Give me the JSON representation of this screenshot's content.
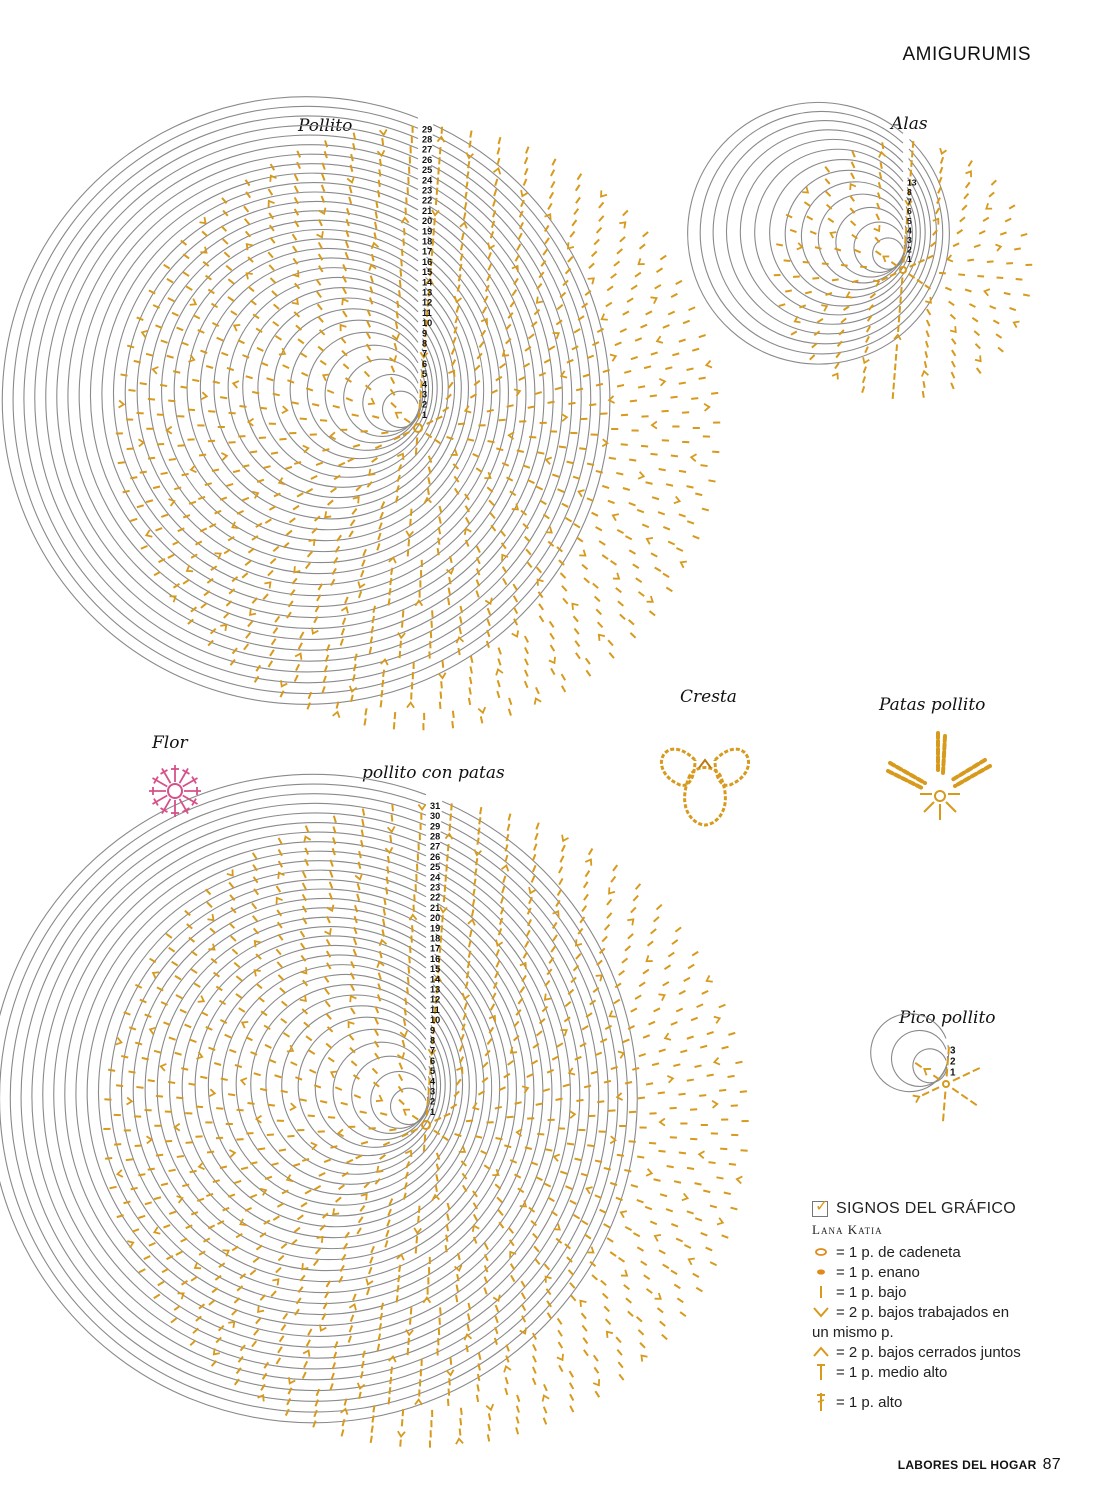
{
  "header": {
    "section": "AMIGURUMIS"
  },
  "charts": {
    "pollito": {
      "title": "Pollito",
      "rounds": 29
    },
    "alas": {
      "title": "Alas",
      "rounds": 13,
      "labels": [
        "13",
        "8",
        "7",
        "6",
        "5",
        "4",
        "3",
        "2",
        "1"
      ]
    },
    "cresta": {
      "title": "Cresta"
    },
    "patas": {
      "title": "Patas pollito"
    },
    "flor": {
      "title": "Flor"
    },
    "pollito_patas": {
      "title": "pollito con patas",
      "rounds": 31
    },
    "pico": {
      "title": "Pico pollito",
      "rounds": 3
    }
  },
  "legend": {
    "heading": "SIGNOS DEL GRÁFICO",
    "yarn": "Lana Katia",
    "items": [
      {
        "symbol": "chain-icon",
        "label": "= 1 p. de cadeneta"
      },
      {
        "symbol": "slip-stitch-icon",
        "label": "= 1 p. enano"
      },
      {
        "symbol": "single-crochet-icon",
        "label": "= 1 p. bajo"
      },
      {
        "symbol": "increase-icon",
        "label": "= 2 p. bajos trabajados en",
        "label2": "un mismo p."
      },
      {
        "symbol": "decrease-icon",
        "label": "= 2 p. bajos cerrados juntos"
      },
      {
        "symbol": "half-double-icon",
        "label": "= 1 p. medio alto"
      },
      {
        "symbol": "double-crochet-icon",
        "label": "= 1 p. alto"
      }
    ]
  },
  "footer": {
    "magazine": "LABORES DEL HOGAR",
    "page": "87"
  },
  "colors": {
    "stitch": "#d79a1c",
    "ring": "#8a8a8a",
    "flower": "#d6508a",
    "chain": "#e08a1a"
  }
}
